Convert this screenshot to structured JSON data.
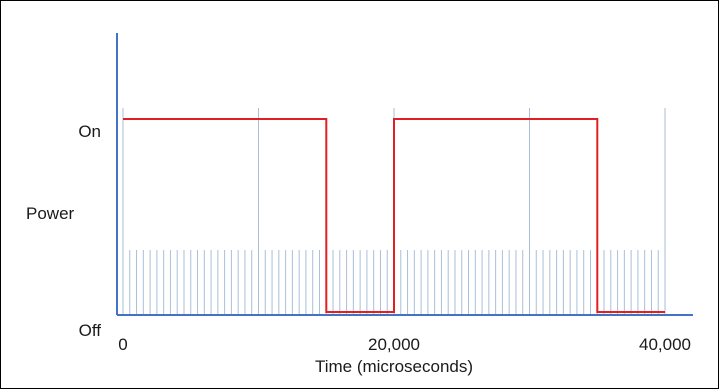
{
  "chart_data": {
    "type": "line",
    "xlabel": "Time (microseconds)",
    "ylabel": "Power",
    "y_levels": [
      {
        "label": "Off",
        "value": 0
      },
      {
        "label": "On",
        "value": 1
      }
    ],
    "x_ticks": [
      {
        "label": "0",
        "value": 0
      },
      {
        "label": "20,000",
        "value": 20000
      },
      {
        "label": "40,000",
        "value": 40000
      }
    ],
    "xlim": [
      0,
      40000
    ],
    "series": [
      {
        "color": "#e02020",
        "x": [
          0,
          15000,
          15000,
          20000,
          20000,
          35000,
          35000,
          40000
        ],
        "y": [
          1,
          1,
          0,
          0,
          1,
          1,
          0,
          0
        ]
      }
    ],
    "tick_marks": {
      "color": "#a9bfd8",
      "major_every": 10000,
      "minor_every": 500
    },
    "axis_color": "#4472c4"
  }
}
